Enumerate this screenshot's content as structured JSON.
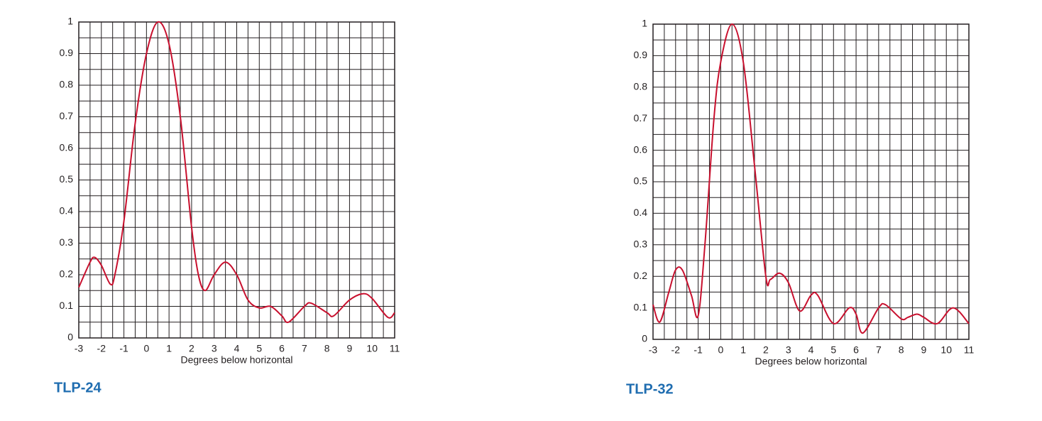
{
  "chart_data": [
    {
      "type": "line",
      "title": "TLP-24",
      "xlabel": "Degrees below horizontal",
      "xlim": [
        -3,
        11
      ],
      "xticks": [
        -3,
        -2,
        -1,
        0,
        1,
        2,
        3,
        4,
        5,
        6,
        7,
        8,
        9,
        10,
        11
      ],
      "ylim": [
        0,
        1
      ],
      "yticks": [
        0,
        0.1,
        0.2,
        0.3,
        0.4,
        0.5,
        0.6,
        0.7,
        0.8,
        0.9,
        1
      ],
      "grid": true,
      "x": [
        -3,
        -2.5,
        -2.3,
        -2,
        -1.6,
        -1.4,
        -1,
        -0.5,
        0,
        0.5,
        1,
        1.5,
        2,
        2.3,
        2.6,
        3,
        3.5,
        4,
        4.5,
        5,
        5.5,
        6,
        6.3,
        7,
        7.3,
        8,
        8.3,
        9,
        9.6,
        10,
        10.7,
        11
      ],
      "series": [
        {
          "color": "#c8102e",
          "values": [
            0.16,
            0.24,
            0.255,
            0.23,
            0.17,
            0.2,
            0.37,
            0.68,
            0.9,
            1.0,
            0.93,
            0.7,
            0.35,
            0.2,
            0.15,
            0.2,
            0.24,
            0.2,
            0.12,
            0.095,
            0.1,
            0.07,
            0.05,
            0.1,
            0.11,
            0.08,
            0.07,
            0.12,
            0.14,
            0.125,
            0.065,
            0.08
          ]
        }
      ]
    },
    {
      "type": "line",
      "title": "TLP-32",
      "xlabel": "Degrees below horizontal",
      "xlim": [
        -3,
        11
      ],
      "xticks": [
        -3,
        -2,
        -1,
        0,
        1,
        2,
        3,
        4,
        5,
        6,
        7,
        8,
        9,
        10,
        11
      ],
      "ylim": [
        0,
        1
      ],
      "yticks": [
        0,
        0.1,
        0.2,
        0.3,
        0.4,
        0.5,
        0.6,
        0.7,
        0.8,
        0.9,
        1
      ],
      "grid": true,
      "x": [
        -3,
        -2.7,
        -2.3,
        -2,
        -1.7,
        -1.3,
        -1,
        -0.7,
        -0.3,
        0,
        0.5,
        1,
        1.5,
        2,
        2.2,
        2.6,
        3,
        3.5,
        4,
        4.3,
        5,
        5.7,
        6,
        6.3,
        7,
        7.3,
        8,
        8.3,
        8.7,
        9,
        9.6,
        10.3,
        11
      ],
      "series": [
        {
          "color": "#c8102e",
          "values": [
            0.11,
            0.055,
            0.15,
            0.22,
            0.22,
            0.14,
            0.075,
            0.3,
            0.7,
            0.88,
            1.0,
            0.88,
            0.55,
            0.2,
            0.19,
            0.21,
            0.18,
            0.09,
            0.14,
            0.14,
            0.05,
            0.1,
            0.08,
            0.02,
            0.1,
            0.11,
            0.065,
            0.07,
            0.08,
            0.07,
            0.05,
            0.1,
            0.05
          ]
        }
      ]
    }
  ]
}
